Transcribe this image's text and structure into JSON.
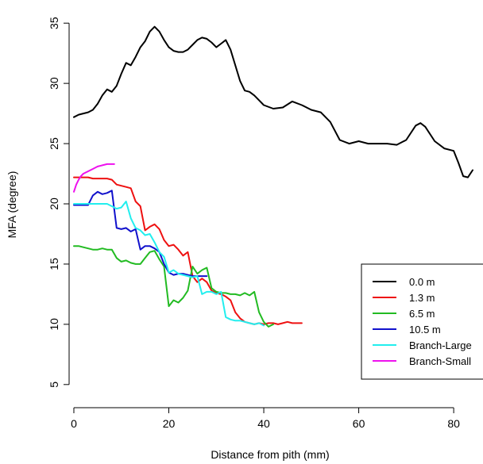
{
  "chart_data": {
    "type": "line",
    "xlabel": "Distance from pith (mm)",
    "ylabel": "MFA (degree)",
    "xlim": [
      -1,
      85
    ],
    "ylim": [
      4,
      36
    ],
    "xticks": [
      0,
      20,
      40,
      60,
      80
    ],
    "yticks": [
      5,
      10,
      15,
      20,
      25,
      30,
      35
    ],
    "grid": false,
    "legend_position": "bottom-right",
    "series": [
      {
        "name": "0.0 m",
        "color": "#000000",
        "x": [
          0,
          1,
          2,
          3,
          4,
          5,
          6,
          7,
          8,
          9,
          10,
          11,
          12,
          13,
          14,
          15,
          16,
          17,
          18,
          19,
          20,
          21,
          22,
          23,
          24,
          25,
          26,
          27,
          28,
          29,
          30,
          31,
          32,
          33,
          34,
          35,
          36,
          37,
          38,
          39,
          40,
          42,
          44,
          46,
          48,
          50,
          52,
          54,
          56,
          58,
          60,
          62,
          64,
          66,
          68,
          70,
          72,
          73,
          74,
          76,
          78,
          80,
          81,
          82,
          83,
          84
        ],
        "y": [
          27.2,
          27.4,
          27.5,
          27.6,
          27.8,
          28.3,
          29.0,
          29.5,
          29.3,
          29.8,
          30.8,
          31.7,
          31.5,
          32.2,
          33.0,
          33.5,
          34.3,
          34.7,
          34.3,
          33.6,
          33.0,
          32.7,
          32.6,
          32.6,
          32.8,
          33.2,
          33.6,
          33.8,
          33.7,
          33.4,
          33.0,
          33.3,
          33.6,
          32.8,
          31.5,
          30.2,
          29.4,
          29.3,
          29.0,
          28.6,
          28.2,
          27.9,
          28.0,
          28.5,
          28.2,
          27.8,
          27.6,
          26.8,
          25.3,
          25.0,
          25.2,
          25.0,
          25.0,
          25.0,
          24.9,
          25.3,
          26.5,
          26.7,
          26.4,
          25.2,
          24.6,
          24.4,
          23.4,
          22.3,
          22.2,
          22.8
        ]
      },
      {
        "name": "1.3 m",
        "color": "#ee1111",
        "x": [
          0,
          1,
          2,
          3,
          4,
          5,
          6,
          7,
          8,
          9,
          10,
          11,
          12,
          13,
          14,
          15,
          16,
          17,
          18,
          19,
          20,
          21,
          22,
          23,
          24,
          25,
          26,
          27,
          28,
          29,
          30,
          31,
          32,
          33,
          34,
          35,
          36,
          37,
          38,
          39,
          40,
          41,
          42,
          43,
          44,
          45,
          46,
          47,
          48
        ],
        "y": [
          22.2,
          22.2,
          22.2,
          22.2,
          22.1,
          22.1,
          22.1,
          22.1,
          22.0,
          21.6,
          21.5,
          21.4,
          21.3,
          20.2,
          19.8,
          17.8,
          18.1,
          18.3,
          17.9,
          17.0,
          16.5,
          16.6,
          16.2,
          15.7,
          16.0,
          14.0,
          13.5,
          13.8,
          13.5,
          12.8,
          12.6,
          12.5,
          12.3,
          12.0,
          11.0,
          10.5,
          10.2,
          10.1,
          10.0,
          10.1,
          10.0,
          10.1,
          10.1,
          10.0,
          10.1,
          10.2,
          10.1,
          10.1,
          10.1
        ]
      },
      {
        "name": "6.5 m",
        "color": "#22bb22",
        "x": [
          0,
          1,
          2,
          3,
          4,
          5,
          6,
          7,
          8,
          9,
          10,
          11,
          12,
          13,
          14,
          15,
          16,
          17,
          18,
          19,
          20,
          21,
          22,
          23,
          24,
          25,
          26,
          27,
          28,
          29,
          30,
          31,
          32,
          33,
          34,
          35,
          36,
          37,
          38,
          39,
          40,
          41,
          42
        ],
        "y": [
          16.5,
          16.5,
          16.4,
          16.3,
          16.2,
          16.2,
          16.3,
          16.2,
          16.2,
          15.5,
          15.2,
          15.3,
          15.1,
          15.0,
          15.0,
          15.5,
          16.0,
          16.1,
          15.4,
          14.8,
          11.5,
          12.0,
          11.8,
          12.2,
          12.8,
          14.8,
          14.2,
          14.5,
          14.7,
          13.0,
          12.7,
          12.6,
          12.6,
          12.5,
          12.5,
          12.4,
          12.6,
          12.4,
          12.7,
          11.0,
          10.2,
          9.8,
          10.0
        ]
      },
      {
        "name": "10.5 m",
        "color": "#1111cc",
        "x": [
          0,
          1,
          2,
          3,
          4,
          5,
          6,
          7,
          8,
          9,
          10,
          11,
          12,
          13,
          14,
          15,
          16,
          17,
          18,
          19,
          20,
          21,
          22,
          23,
          24,
          25,
          26,
          27,
          28
        ],
        "y": [
          19.9,
          19.9,
          19.9,
          19.9,
          20.7,
          21.0,
          20.8,
          20.9,
          21.1,
          18.0,
          17.9,
          18.0,
          17.7,
          17.9,
          16.2,
          16.5,
          16.5,
          16.3,
          16.0,
          15.0,
          14.3,
          14.1,
          14.2,
          14.2,
          14.1,
          14.0,
          14.0,
          14.0,
          14.0
        ]
      },
      {
        "name": "Branch-Large",
        "color": "#22eeee",
        "x": [
          0,
          1,
          2,
          3,
          4,
          5,
          6,
          7,
          8,
          9,
          10,
          11,
          12,
          13,
          14,
          15,
          16,
          17,
          18,
          19,
          20,
          21,
          22,
          23,
          24,
          25,
          26,
          27,
          28,
          29,
          30,
          31,
          32,
          33,
          34,
          35,
          36,
          37,
          38,
          39,
          40
        ],
        "y": [
          20.0,
          20.0,
          20.0,
          20.0,
          20.0,
          20.0,
          20.0,
          20.0,
          19.8,
          19.6,
          19.7,
          20.2,
          18.8,
          18.0,
          17.8,
          17.4,
          17.5,
          16.8,
          16.0,
          15.6,
          14.3,
          14.5,
          14.2,
          14.1,
          14.0,
          13.9,
          14.0,
          12.5,
          12.7,
          12.7,
          12.5,
          12.7,
          10.6,
          10.4,
          10.3,
          10.3,
          10.2,
          10.1,
          10.0,
          10.1,
          9.9
        ]
      },
      {
        "name": "Branch-Small",
        "color": "#ee11ee",
        "x": [
          0,
          0.5,
          1,
          1.5,
          2,
          3,
          4,
          5,
          6,
          7,
          8,
          8.5
        ],
        "y": [
          21.0,
          21.6,
          22.0,
          22.3,
          22.5,
          22.7,
          22.9,
          23.1,
          23.2,
          23.3,
          23.3,
          23.3
        ]
      }
    ]
  }
}
